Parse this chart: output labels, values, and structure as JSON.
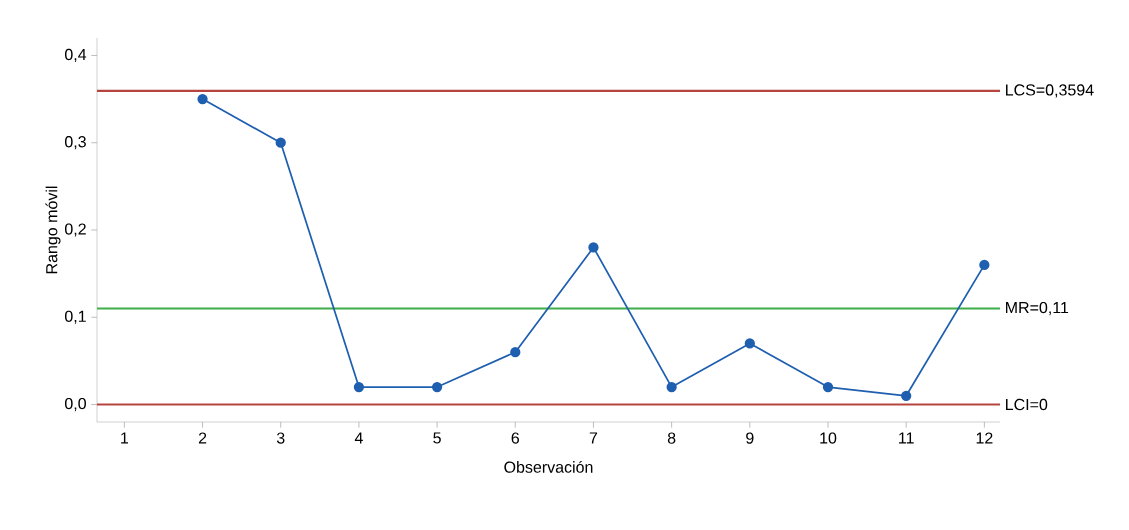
{
  "chart_data": {
    "type": "line",
    "xlabel": "Observación",
    "ylabel": "Rango móvil",
    "x": [
      2,
      3,
      4,
      5,
      6,
      7,
      8,
      9,
      10,
      11,
      12
    ],
    "series": [
      {
        "color": "#1f5fb0",
        "values": [
          0.35,
          0.3,
          0.02,
          0.02,
          0.06,
          0.18,
          0.02,
          0.07,
          0.02,
          0.01,
          0.16
        ]
      }
    ],
    "marker": "circle",
    "line_style": "solid",
    "grid": false,
    "xlim": [
      0.65,
      12.2
    ],
    "ylim": [
      -0.02,
      0.42
    ],
    "xticks": [
      1,
      2,
      3,
      4,
      5,
      6,
      7,
      8,
      9,
      10,
      11,
      12
    ],
    "yticks": [
      {
        "value": 0.0,
        "label": "0,0"
      },
      {
        "value": 0.1,
        "label": "0,1"
      },
      {
        "value": 0.2,
        "label": "0,2"
      },
      {
        "value": 0.3,
        "label": "0,3"
      },
      {
        "value": 0.4,
        "label": "0,4"
      }
    ],
    "ref_lines": [
      {
        "axis": "y",
        "value": 0.3594,
        "label": "LCS=0,3594",
        "color": "#b5443f"
      },
      {
        "axis": "y",
        "value": 0.11,
        "label": "MR=0,11",
        "color": "#3fae49"
      },
      {
        "axis": "y",
        "value": 0,
        "label": "LCI=0",
        "color": "#b5443f"
      }
    ]
  }
}
